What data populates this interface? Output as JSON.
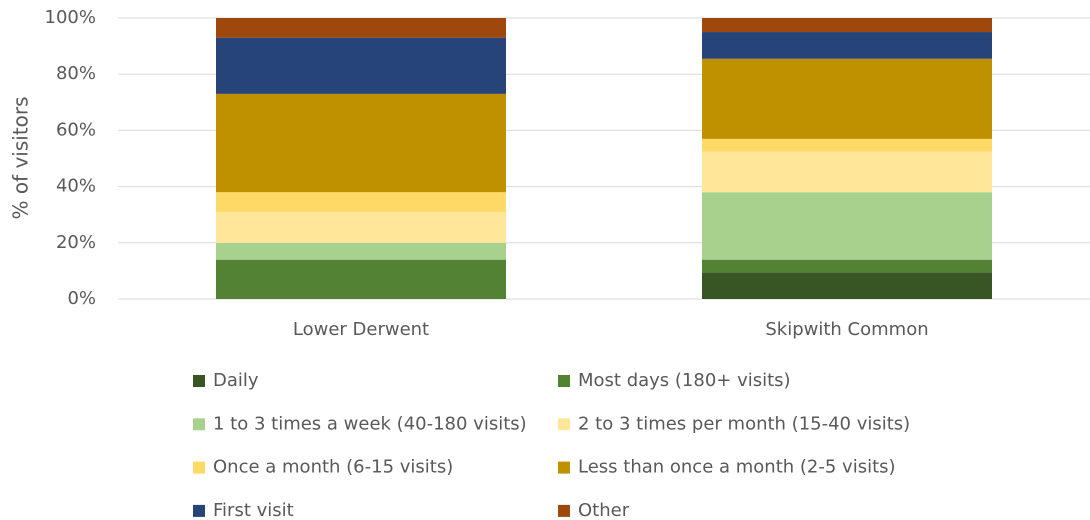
{
  "chart_data": {
    "type": "stacked_bar",
    "y_label": "% of visitors",
    "categories": [
      "Lower Derwent",
      "Skipwith Common"
    ],
    "series": [
      {
        "name": "Daily",
        "color": "#375623",
        "values": [
          0,
          9.5
        ]
      },
      {
        "name": "Most days (180+ visits)",
        "color": "#548235",
        "values": [
          14,
          4.5
        ]
      },
      {
        "name": "1 to 3 times a week (40-180 visits)",
        "color": "#a9d18e",
        "values": [
          6,
          24
        ]
      },
      {
        "name": "2 to 3 times per month (15-40 visits)",
        "color": "#ffe699",
        "values": [
          11,
          14.5
        ]
      },
      {
        "name": "Once a month (6-15 visits)",
        "color": "#ffd966",
        "values": [
          7,
          4.5
        ]
      },
      {
        "name": "Less than once a month (2-5 visits)",
        "color": "#bf9000",
        "values": [
          35,
          28.5
        ]
      },
      {
        "name": "First visit",
        "color": "#264478",
        "values": [
          20,
          9.5
        ]
      },
      {
        "name": "Other",
        "color": "#9e480e",
        "values": [
          7,
          5
        ]
      }
    ],
    "ylim": [
      0,
      100
    ],
    "yticks": [
      {
        "value": 0,
        "label": "0%"
      },
      {
        "value": 20,
        "label": "20%"
      },
      {
        "value": 40,
        "label": "40%"
      },
      {
        "value": 60,
        "label": "60%"
      },
      {
        "value": 80,
        "label": "80%"
      },
      {
        "value": 100,
        "label": "100%"
      }
    ],
    "grid": true
  }
}
